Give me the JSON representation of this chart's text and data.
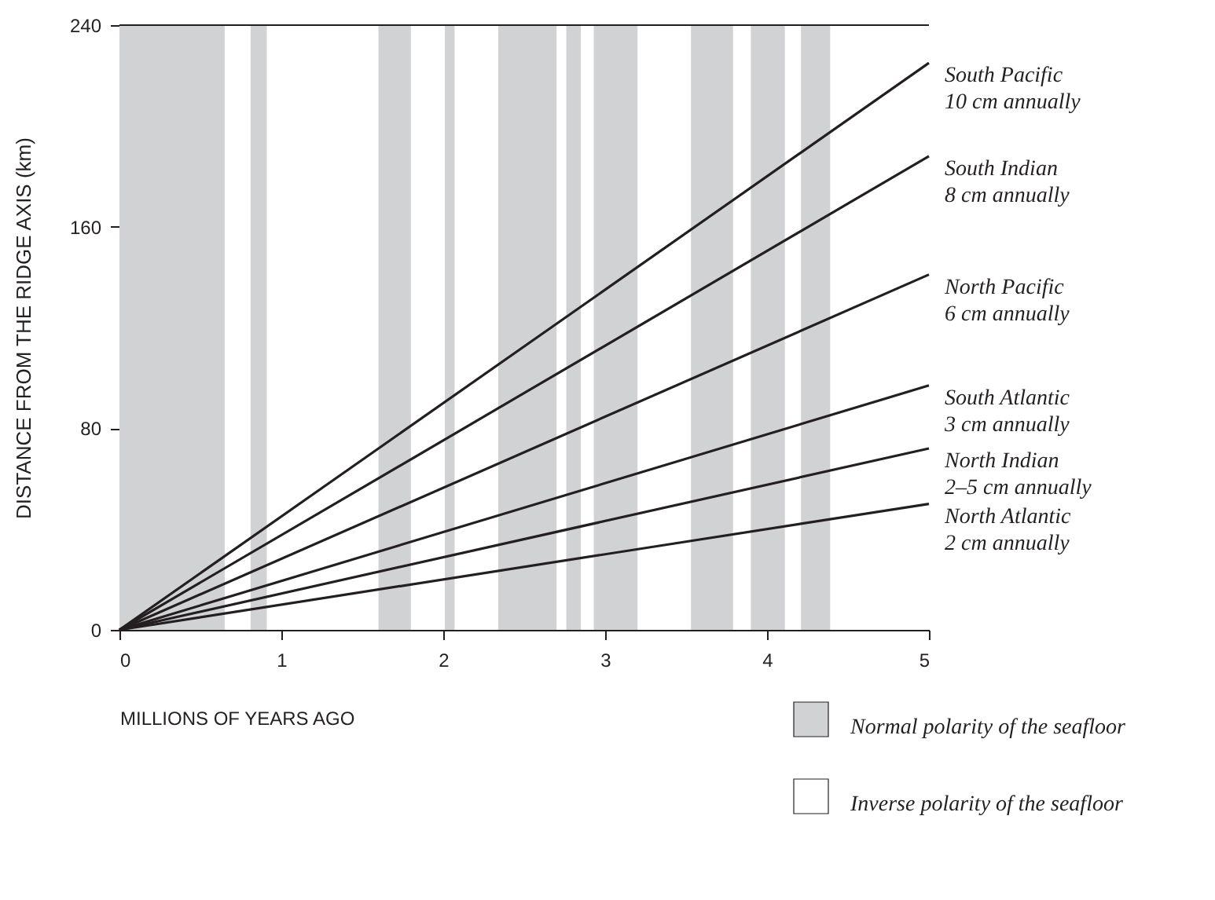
{
  "chart_data": {
    "type": "line",
    "xlabel": "MILLIONS OF YEARS AGO",
    "ylabel": "DISTANCE FROM THE RIDGE AXIS (km)",
    "x": [
      0,
      5
    ],
    "xlim": [
      0,
      5
    ],
    "xticks": [
      0,
      1,
      2,
      3,
      4,
      5
    ],
    "ylim": [
      0,
      240
    ],
    "yticks": [
      0,
      80,
      160,
      240
    ],
    "grid": false,
    "legend": "bottom right",
    "marker": "none",
    "line_style": "solid",
    "series": [
      {
        "name": "South Pacific\n10 cm annually",
        "color": "#231f20",
        "values": [
          0,
          225
        ]
      },
      {
        "name": "South Indian\n8 cm annually",
        "color": "#231f20",
        "values": [
          0,
          188
        ]
      },
      {
        "name": "North Pacific\n6 cm annually",
        "color": "#231f20",
        "values": [
          0,
          141
        ]
      },
      {
        "name": "South Atlantic\n3 cm annually",
        "color": "#231f20",
        "values": [
          0,
          97
        ]
      },
      {
        "name": "North Indian\n2–5 cm annually",
        "color": "#231f20",
        "values": [
          0,
          72
        ]
      },
      {
        "name": "North Atlantic\n2 cm annually",
        "color": "#231f20",
        "values": [
          0,
          50
        ]
      }
    ],
    "bands": [
      {
        "axis": "x",
        "from": 0,
        "to": 0.65,
        "label": "Normal polarity of the seafloor",
        "color": "#d1d2d4"
      },
      {
        "axis": "x",
        "from": 0.81,
        "to": 0.91,
        "color": "#d1d2d4"
      },
      {
        "axis": "x",
        "from": 1.6,
        "to": 1.8,
        "color": "#d1d2d4"
      },
      {
        "axis": "x",
        "from": 2.01,
        "to": 2.07,
        "color": "#d1d2d4"
      },
      {
        "axis": "x",
        "from": 2.34,
        "to": 2.7,
        "color": "#d1d2d4"
      },
      {
        "axis": "x",
        "from": 2.76,
        "to": 2.85,
        "color": "#d1d2d4"
      },
      {
        "axis": "x",
        "from": 2.93,
        "to": 3.2,
        "color": "#d1d2d4"
      },
      {
        "axis": "x",
        "from": 3.53,
        "to": 3.79,
        "color": "#d1d2d4"
      },
      {
        "axis": "x",
        "from": 3.9,
        "to": 4.11,
        "color": "#d1d2d4"
      },
      {
        "axis": "x",
        "from": 4.21,
        "to": 4.39,
        "color": "#d1d2d4"
      }
    ],
    "annotations": [
      "Inverse polarity of the seafloor"
    ]
  }
}
